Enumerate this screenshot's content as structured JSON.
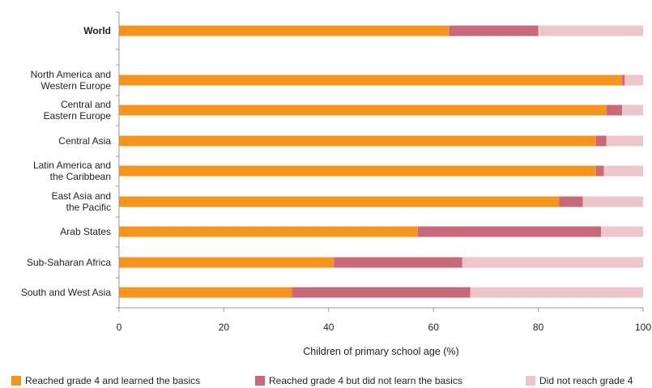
{
  "chart_data": {
    "type": "bar",
    "orientation": "horizontal",
    "stacked": true,
    "categories": [
      {
        "lines": [
          "World"
        ],
        "bold": true
      },
      {
        "lines": [
          "North America and",
          "Western Europe"
        ],
        "bold": false
      },
      {
        "lines": [
          "Central and",
          "Eastern Europe"
        ],
        "bold": false
      },
      {
        "lines": [
          "Central Asia"
        ],
        "bold": false
      },
      {
        "lines": [
          "Latin America and",
          "the Caribbean"
        ],
        "bold": false
      },
      {
        "lines": [
          "East Asia and",
          "the Pacific"
        ],
        "bold": false
      },
      {
        "lines": [
          "Arab States"
        ],
        "bold": false
      },
      {
        "lines": [
          "Sub-Saharan Africa"
        ],
        "bold": false
      },
      {
        "lines": [
          "South and West Asia"
        ],
        "bold": false
      }
    ],
    "series": [
      {
        "name": "Reached grade 4 and learned the basics",
        "color": "#f7941d",
        "values": [
          63,
          96,
          93,
          91,
          91,
          84,
          57,
          41,
          33
        ]
      },
      {
        "name": "Reached grade 4 but did not learn the basics",
        "color": "#c8697a",
        "values": [
          17,
          0.5,
          3,
          2,
          1.5,
          4.5,
          35,
          24.5,
          34
        ]
      },
      {
        "name": "Did not reach grade 4",
        "color": "#ecc6ca",
        "values": [
          20,
          3.5,
          4,
          7,
          7.5,
          11.5,
          8,
          34.5,
          33
        ]
      }
    ],
    "xlim": [
      0,
      100
    ],
    "xticks": [
      0,
      20,
      40,
      60,
      80,
      100
    ],
    "xlabel": "Children of primary school age (%)",
    "ylabel": "",
    "legend_position": "bottom",
    "grid": false
  }
}
